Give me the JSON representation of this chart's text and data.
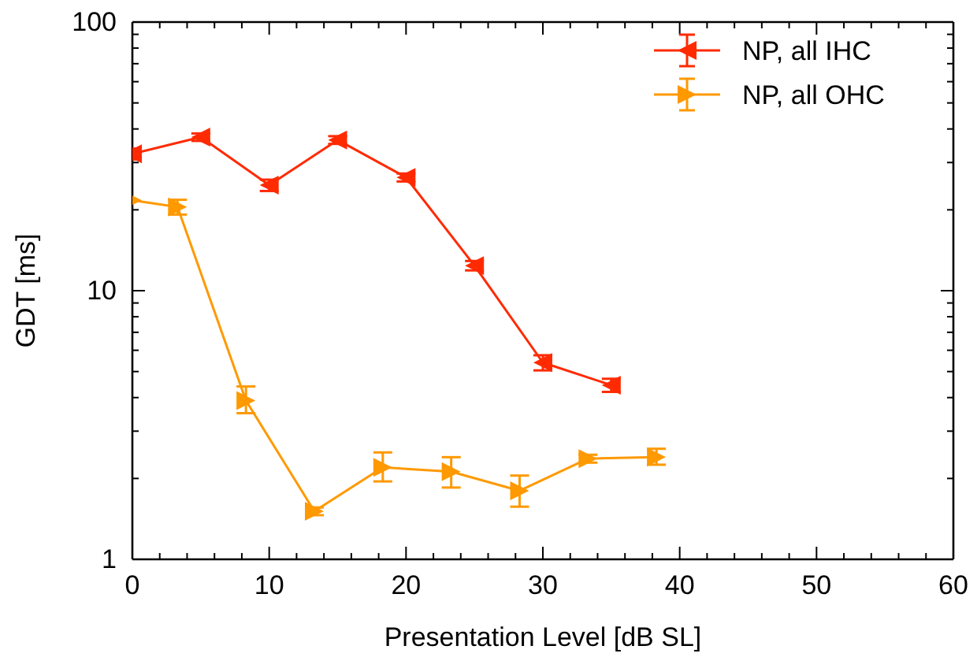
{
  "chart_data": {
    "type": "line",
    "xlabel": "Presentation Level [dB SL]",
    "ylabel": "GDT [ms]",
    "log": "y",
    "xlim": [
      0,
      60
    ],
    "xticks": [
      0,
      10,
      20,
      30,
      40,
      50,
      60
    ],
    "ylim": [
      1,
      100
    ],
    "yticks": [
      1,
      10,
      100
    ],
    "legend": "top right",
    "marker": "triangle",
    "line_style": "solid",
    "grid": false,
    "series": [
      {
        "name": "NP, all IHC",
        "color": "#ff2a00",
        "x": [
          0,
          5,
          10,
          15,
          20,
          25,
          30,
          35
        ],
        "values": [
          32.3,
          37.3,
          24.7,
          36.4,
          26.4,
          12.4,
          5.4,
          4.45
        ],
        "errors": [
          1.5,
          1.2,
          1.2,
          1.2,
          0.9,
          0.5,
          0.35,
          0.25
        ]
      },
      {
        "name": "NP, all OHC",
        "color": "#ff9900",
        "x": [
          0,
          3.3,
          8.3,
          13.3,
          18.3,
          23.3,
          28.3,
          33.3,
          38.3
        ],
        "values": [
          21.7,
          20.5,
          3.9,
          1.51,
          2.2,
          2.12,
          1.8,
          2.37,
          2.4
        ],
        "errors": [
          null,
          1.3,
          [
            3.5,
            4.4
          ],
          0.05,
          [
            1.95,
            2.5
          ],
          [
            1.85,
            2.4
          ],
          [
            1.57,
            2.05
          ],
          0.08,
          [
            2.25,
            2.58
          ]
        ]
      }
    ]
  }
}
